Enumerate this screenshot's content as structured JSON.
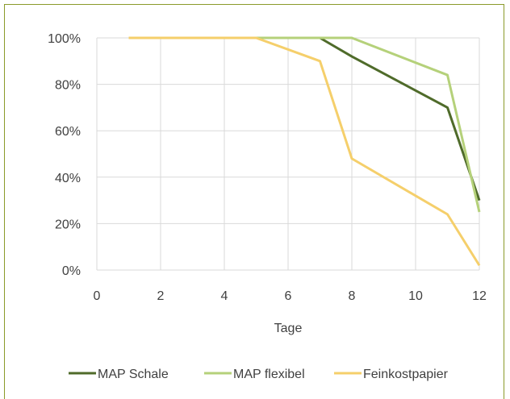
{
  "chart_data": {
    "type": "line",
    "xlabel": "Tage",
    "ylabel": "",
    "xlim": [
      0,
      12
    ],
    "ylim": [
      0,
      100
    ],
    "x_ticks": [
      "0",
      "2",
      "4",
      "6",
      "8",
      "10",
      "12"
    ],
    "y_ticks": [
      "0%",
      "20%",
      "40%",
      "60%",
      "80%",
      "100%"
    ],
    "grid": "on",
    "legend_position": "bottom",
    "series": [
      {
        "name": "MAP Schale",
        "color": "#4f6b2a",
        "x": [
          1,
          7,
          8,
          11,
          12
        ],
        "y": [
          100,
          100,
          92,
          70,
          30
        ]
      },
      {
        "name": "MAP flexibel",
        "color": "#b5d17a",
        "x": [
          1,
          8,
          11,
          12
        ],
        "y": [
          100,
          100,
          84,
          25
        ]
      },
      {
        "name": "Feinkostpapier",
        "color": "#f5cf6b",
        "x": [
          1,
          5,
          7,
          8,
          11,
          12
        ],
        "y": [
          100,
          100,
          90,
          48,
          24,
          2
        ]
      }
    ]
  }
}
